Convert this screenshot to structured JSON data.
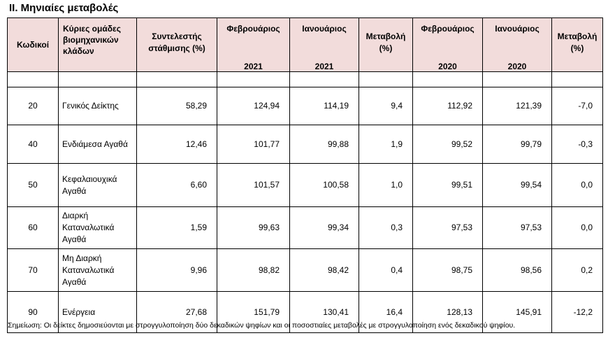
{
  "title": "II. Μηνιαίες μεταβολές",
  "headers": {
    "code": "Κωδικοί",
    "group": [
      "Κύριες ομάδες",
      "βιομηχανικών",
      "κλάδων"
    ],
    "weight": [
      "Συντελεστής",
      "στάθμισης (%)"
    ],
    "feb2021": [
      "Φεβρουάριος",
      "2021"
    ],
    "jan2021": [
      "Ιανουάριος",
      "2021"
    ],
    "change2021": [
      "Μεταβολή",
      "(%)"
    ],
    "feb2020": [
      "Φεβρουάριος",
      "2020"
    ],
    "jan2020": [
      "Ιανουάριος",
      "2020"
    ],
    "change2020": [
      "Μεταβολή",
      "(%)"
    ]
  },
  "rows": [
    {
      "code": "20",
      "group": [
        "Γενικός Δείκτης"
      ],
      "weight": "58,29",
      "feb2021": "124,94",
      "jan2021": "114,19",
      "change2021": "9,4",
      "feb2020": "112,92",
      "jan2020": "121,39",
      "change2020": "-7,0"
    },
    {
      "code": "40",
      "group": [
        "Ενδιάμεσα Αγαθά"
      ],
      "weight": "12,46",
      "feb2021": "101,77",
      "jan2021": "99,88",
      "change2021": "1,9",
      "feb2020": "99,52",
      "jan2020": "99,79",
      "change2020": "-0,3"
    },
    {
      "code": "50",
      "group": [
        "Κεφαλαιουχικά",
        "Αγαθά"
      ],
      "weight": "6,60",
      "feb2021": "101,57",
      "jan2021": "100,58",
      "change2021": "1,0",
      "feb2020": "99,51",
      "jan2020": "99,54",
      "change2020": "0,0"
    },
    {
      "code": "60",
      "group": [
        "Διαρκή",
        "Καταναλωτικά",
        "Αγαθά"
      ],
      "weight": "1,59",
      "feb2021": "99,63",
      "jan2021": "99,34",
      "change2021": "0,3",
      "feb2020": "97,53",
      "jan2020": "97,53",
      "change2020": "0,0"
    },
    {
      "code": "70",
      "group": [
        "Μη Διαρκή",
        "Καταναλωτικά",
        "Αγαθά"
      ],
      "weight": "9,96",
      "feb2021": "98,82",
      "jan2021": "98,42",
      "change2021": "0,4",
      "feb2020": "98,75",
      "jan2020": "98,56",
      "change2020": "0,2"
    },
    {
      "code": "90",
      "group": [
        "Ενέργεια"
      ],
      "weight": "27,68",
      "feb2021": "151,79",
      "jan2021": "130,41",
      "change2021": "16,4",
      "feb2020": "128,13",
      "jan2020": "145,91",
      "change2020": "-12,2"
    }
  ],
  "note": "Σημείωση: Οι δείκτες δημοσιεύονται με στρογγυλοποίηση δύο δεκαδικών ψηφίων και οι ποσοστιαίες μεταβολές με στρογγυλοποίηση ενός δεκαδικού ψηφίου."
}
